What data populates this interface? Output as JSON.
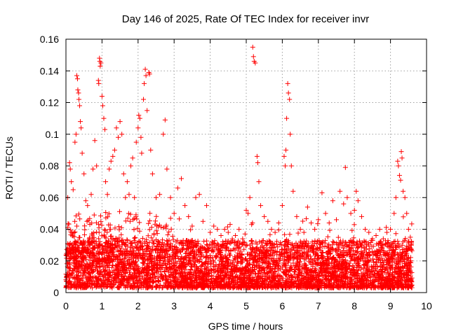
{
  "chart_data": {
    "type": "scatter",
    "title": "Day 146 of 2025, Rate Of TEC Index for receiver invr",
    "xlabel": "GPS time / hours",
    "ylabel": "ROTI / TECUs",
    "xlim": [
      0,
      10
    ],
    "ylim": [
      0,
      0.16
    ],
    "xticks": [
      "0",
      "1",
      "2",
      "3",
      "4",
      "5",
      "6",
      "7",
      "8",
      "9",
      "10"
    ],
    "yticks": [
      "0",
      "0.02",
      "0.04",
      "0.06",
      "0.08",
      "0.1",
      "0.12",
      "0.14",
      "0.16"
    ],
    "grid": true,
    "marker": "plus",
    "color": "#ff0000",
    "series": [
      {
        "name": "ROTI",
        "points": [
          [
            0.05,
            0.06
          ],
          [
            0.1,
            0.082
          ],
          [
            0.12,
            0.078
          ],
          [
            0.15,
            0.07
          ],
          [
            0.2,
            0.065
          ],
          [
            0.25,
            0.095
          ],
          [
            0.28,
            0.1
          ],
          [
            0.3,
            0.137
          ],
          [
            0.32,
            0.135
          ],
          [
            0.33,
            0.128
          ],
          [
            0.35,
            0.126
          ],
          [
            0.36,
            0.122
          ],
          [
            0.38,
            0.118
          ],
          [
            0.4,
            0.108
          ],
          [
            0.42,
            0.104
          ],
          [
            0.45,
            0.088
          ],
          [
            0.5,
            0.075
          ],
          [
            0.55,
            0.058
          ],
          [
            0.6,
            0.055
          ],
          [
            0.7,
            0.062
          ],
          [
            0.75,
            0.078
          ],
          [
            0.8,
            0.096
          ],
          [
            0.85,
            0.08
          ],
          [
            0.9,
            0.134
          ],
          [
            0.91,
            0.132
          ],
          [
            0.93,
            0.148
          ],
          [
            0.94,
            0.146
          ],
          [
            0.95,
            0.143
          ],
          [
            0.97,
            0.145
          ],
          [
            1.0,
            0.124
          ],
          [
            1.02,
            0.118
          ],
          [
            1.05,
            0.11
          ],
          [
            1.08,
            0.103
          ],
          [
            1.1,
            0.07
          ],
          [
            1.15,
            0.062
          ],
          [
            1.2,
            0.078
          ],
          [
            1.25,
            0.083
          ],
          [
            1.3,
            0.086
          ],
          [
            1.35,
            0.09
          ],
          [
            1.4,
            0.104
          ],
          [
            1.45,
            0.098
          ],
          [
            1.5,
            0.108
          ],
          [
            1.55,
            0.1
          ],
          [
            1.6,
            0.075
          ],
          [
            1.65,
            0.06
          ],
          [
            1.7,
            0.07
          ],
          [
            1.75,
            0.062
          ],
          [
            1.8,
            0.08
          ],
          [
            1.85,
            0.085
          ],
          [
            1.9,
            0.06
          ],
          [
            1.95,
            0.095
          ],
          [
            2.0,
            0.104
          ],
          [
            2.02,
            0.112
          ],
          [
            2.05,
            0.11
          ],
          [
            2.08,
            0.098
          ],
          [
            2.1,
            0.088
          ],
          [
            2.15,
            0.122
          ],
          [
            2.17,
            0.132
          ],
          [
            2.2,
            0.141
          ],
          [
            2.22,
            0.137
          ],
          [
            2.25,
            0.115
          ],
          [
            2.3,
            0.139
          ],
          [
            2.32,
            0.138
          ],
          [
            2.35,
            0.09
          ],
          [
            2.4,
            0.075
          ],
          [
            2.5,
            0.06
          ],
          [
            2.6,
            0.062
          ],
          [
            2.7,
            0.1
          ],
          [
            2.75,
            0.109
          ],
          [
            2.8,
            0.078
          ],
          [
            2.9,
            0.06
          ],
          [
            3.0,
            0.05
          ],
          [
            3.1,
            0.066
          ],
          [
            3.2,
            0.072
          ],
          [
            3.3,
            0.055
          ],
          [
            3.4,
            0.048
          ],
          [
            3.5,
            0.042
          ],
          [
            3.6,
            0.06
          ],
          [
            3.7,
            0.062
          ],
          [
            3.8,
            0.045
          ],
          [
            3.9,
            0.055
          ],
          [
            4.0,
            0.038
          ],
          [
            4.1,
            0.042
          ],
          [
            4.2,
            0.04
          ],
          [
            4.3,
            0.036
          ],
          [
            4.4,
            0.04
          ],
          [
            4.5,
            0.038
          ],
          [
            4.6,
            0.032
          ],
          [
            4.7,
            0.036
          ],
          [
            4.8,
            0.04
          ],
          [
            4.9,
            0.034
          ],
          [
            5.0,
            0.052
          ],
          [
            5.05,
            0.05
          ],
          [
            5.1,
            0.06
          ],
          [
            5.15,
            0.043
          ],
          [
            5.18,
            0.155
          ],
          [
            5.2,
            0.149
          ],
          [
            5.22,
            0.146
          ],
          [
            5.25,
            0.145
          ],
          [
            5.3,
            0.086
          ],
          [
            5.32,
            0.082
          ],
          [
            5.35,
            0.07
          ],
          [
            5.4,
            0.055
          ],
          [
            5.5,
            0.048
          ],
          [
            5.6,
            0.045
          ],
          [
            5.7,
            0.04
          ],
          [
            5.8,
            0.038
          ],
          [
            5.9,
            0.044
          ],
          [
            6.0,
            0.055
          ],
          [
            6.05,
            0.086
          ],
          [
            6.08,
            0.08
          ],
          [
            6.1,
            0.09
          ],
          [
            6.12,
            0.11
          ],
          [
            6.15,
            0.132
          ],
          [
            6.17,
            0.126
          ],
          [
            6.2,
            0.122
          ],
          [
            6.22,
            0.1
          ],
          [
            6.25,
            0.08
          ],
          [
            6.3,
            0.064
          ],
          [
            6.4,
            0.048
          ],
          [
            6.5,
            0.04
          ],
          [
            6.6,
            0.038
          ],
          [
            6.7,
            0.054
          ],
          [
            6.8,
            0.044
          ],
          [
            6.9,
            0.04
          ],
          [
            7.0,
            0.046
          ],
          [
            7.1,
            0.063
          ],
          [
            7.2,
            0.05
          ],
          [
            7.3,
            0.044
          ],
          [
            7.4,
            0.058
          ],
          [
            7.5,
            0.046
          ],
          [
            7.6,
            0.064
          ],
          [
            7.7,
            0.056
          ],
          [
            7.75,
            0.079
          ],
          [
            7.8,
            0.06
          ],
          [
            7.9,
            0.05
          ],
          [
            8.0,
            0.052
          ],
          [
            8.05,
            0.064
          ],
          [
            8.1,
            0.058
          ],
          [
            8.2,
            0.048
          ],
          [
            8.3,
            0.04
          ],
          [
            8.4,
            0.038
          ],
          [
            8.5,
            0.034
          ],
          [
            8.6,
            0.036
          ],
          [
            8.7,
            0.04
          ],
          [
            8.8,
            0.034
          ],
          [
            8.9,
            0.038
          ],
          [
            9.0,
            0.04
          ],
          [
            9.1,
            0.05
          ],
          [
            9.15,
            0.06
          ],
          [
            9.2,
            0.083
          ],
          [
            9.22,
            0.08
          ],
          [
            9.25,
            0.074
          ],
          [
            9.28,
            0.071
          ],
          [
            9.3,
            0.089
          ],
          [
            9.32,
            0.085
          ],
          [
            9.35,
            0.064
          ],
          [
            9.4,
            0.06
          ],
          [
            9.45,
            0.05
          ],
          [
            9.5,
            0.04
          ],
          [
            9.55,
            0.035
          ],
          [
            9.58,
            0.03
          ]
        ]
      }
    ]
  }
}
